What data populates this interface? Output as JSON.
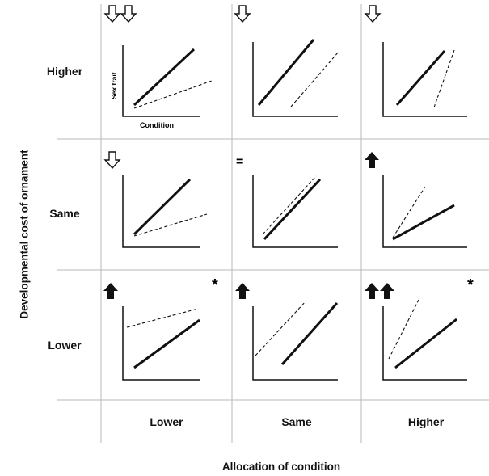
{
  "axis_titles": {
    "y": "Developmental cost of ornament",
    "x": "Allocation of condition"
  },
  "row_labels": [
    "Higher",
    "Same",
    "Lower"
  ],
  "column_labels": [
    "Lower",
    "Same",
    "Higher"
  ],
  "example_panel_axes": {
    "y": "Sex trait",
    "x": "Condition"
  },
  "panel_symbols": [
    [
      "open-down-arrow-x2",
      "open-down-arrow",
      "open-down-arrow"
    ],
    [
      "open-down-arrow",
      "equals",
      "filled-up-arrow"
    ],
    [
      "filled-up-arrow",
      "filled-up-arrow",
      "filled-up-arrow-x2"
    ]
  ],
  "equals_text": "=",
  "asterisk_text": "*",
  "asterisk_panels": [
    "row3-col1",
    "row3-col3"
  ],
  "colors": {
    "lines": "#111111",
    "grid": "#b8b8b8"
  }
}
